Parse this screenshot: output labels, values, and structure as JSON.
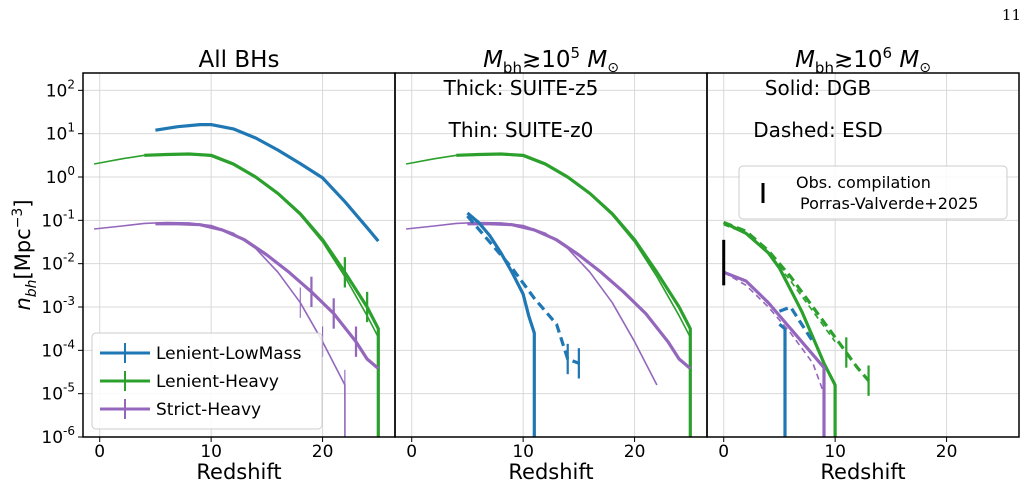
{
  "page_number": "11",
  "colors": {
    "Lenient-LowMass": "#1f77b4",
    "Lenient-Heavy": "#2ca02c",
    "Strict-Heavy": "#9467bd",
    "obs": "#000000"
  },
  "chart_data": [
    {
      "type": "line",
      "title": "All BHs",
      "xlabel": "Redshift",
      "ylabel": "n_bh[Mpc^-3]",
      "xlim": [
        -1.5,
        26.5
      ],
      "ylim_log10": [
        -6,
        2.4
      ],
      "yscale": "log",
      "grid": true,
      "x_ticks": [
        "0",
        "10",
        "20"
      ],
      "y_ticks": [
        "10^2",
        "10^1",
        "10^0",
        "10^-1",
        "10^-2",
        "10^-3",
        "10^-4",
        "10^-5",
        "10^-6"
      ],
      "legend": {
        "placement": "lower-left",
        "entries": [
          "Lenient-LowMass",
          "Lenient-Heavy",
          "Strict-Heavy"
        ]
      },
      "series": [
        {
          "name": "Lenient-LowMass",
          "style": "solid",
          "width": "thick",
          "x": [
            5,
            7,
            9,
            10,
            12,
            14,
            16,
            18,
            20,
            22,
            24,
            25
          ],
          "log10_y": [
            1.08,
            1.16,
            1.21,
            1.21,
            1.11,
            0.9,
            0.62,
            0.31,
            -0.02,
            -0.57,
            -1.17,
            -1.48
          ]
        },
        {
          "name": "Lenient-Heavy",
          "style": "solid",
          "width": "thick",
          "x": [
            4,
            6,
            8,
            10,
            12,
            14,
            16,
            18,
            20,
            22,
            24,
            25
          ],
          "log10_y": [
            0.5,
            0.52,
            0.53,
            0.5,
            0.3,
            0.0,
            -0.38,
            -0.85,
            -1.45,
            -2.2,
            -3.0,
            -3.5
          ],
          "error_x": [
            22,
            24
          ],
          "end_drop": -6
        },
        {
          "name": "Lenient-Heavy",
          "style": "solid",
          "width": "thin",
          "x": [
            -0.5,
            2,
            4,
            6,
            8,
            10,
            12,
            14,
            16,
            18,
            20,
            22,
            24,
            25
          ],
          "log10_y": [
            0.3,
            0.42,
            0.5,
            0.52,
            0.52,
            0.48,
            0.28,
            -0.02,
            -0.4,
            -0.88,
            -1.5,
            -2.3,
            -3.2,
            -3.7
          ],
          "end_drop": -6
        },
        {
          "name": "Strict-Heavy",
          "style": "solid",
          "width": "thick",
          "x": [
            5,
            7,
            9,
            11,
            13,
            15,
            17,
            19,
            21,
            23,
            24,
            25
          ],
          "log10_y": [
            -1.08,
            -1.08,
            -1.1,
            -1.22,
            -1.45,
            -1.8,
            -2.2,
            -2.65,
            -3.15,
            -3.8,
            -4.2,
            -4.42
          ],
          "error_x": [
            19,
            21,
            23
          ]
        },
        {
          "name": "Strict-Heavy",
          "style": "solid",
          "width": "thin",
          "x": [
            -0.5,
            2,
            4,
            6,
            8,
            10,
            12,
            14,
            16,
            18,
            20,
            22
          ],
          "log10_y": [
            -1.2,
            -1.13,
            -1.07,
            -1.05,
            -1.06,
            -1.12,
            -1.3,
            -1.65,
            -2.2,
            -2.9,
            -3.8,
            -4.8
          ],
          "error_x": [
            18,
            20,
            22
          ],
          "end_drop": -6
        }
      ]
    },
    {
      "type": "line",
      "title": "M_bh≳10^5 M_⊙",
      "xlabel": "Redshift",
      "xlim": [
        -1.5,
        26.5
      ],
      "ylim_log10": [
        -6,
        2.4
      ],
      "yscale": "log",
      "grid": true,
      "x_ticks": [
        "0",
        "10",
        "20"
      ],
      "annotations": [
        "Thick: SUITE-z5",
        "Thin: SUITE-z0"
      ],
      "series": [
        {
          "name": "Lenient-Heavy",
          "style": "solid",
          "width": "thick",
          "x": [
            4,
            6,
            8,
            10,
            12,
            14,
            16,
            18,
            20,
            22,
            24,
            25
          ],
          "log10_y": [
            0.5,
            0.52,
            0.53,
            0.5,
            0.3,
            0.0,
            -0.38,
            -0.85,
            -1.45,
            -2.2,
            -3.0,
            -3.5
          ],
          "end_drop": -6
        },
        {
          "name": "Lenient-Heavy",
          "style": "solid",
          "width": "thin",
          "x": [
            -0.5,
            2,
            4,
            6,
            8,
            10,
            12,
            14,
            16,
            18,
            20,
            22,
            24,
            25
          ],
          "log10_y": [
            0.3,
            0.42,
            0.5,
            0.52,
            0.52,
            0.48,
            0.28,
            -0.02,
            -0.4,
            -0.88,
            -1.5,
            -2.3,
            -3.2,
            -3.7
          ],
          "end_drop": -6
        },
        {
          "name": "Strict-Heavy",
          "style": "solid",
          "width": "thick",
          "x": [
            5,
            7,
            9,
            11,
            13,
            15,
            17,
            19,
            21,
            23,
            24,
            25
          ],
          "log10_y": [
            -1.08,
            -1.08,
            -1.1,
            -1.22,
            -1.45,
            -1.8,
            -2.2,
            -2.65,
            -3.15,
            -3.8,
            -4.2,
            -4.42
          ]
        },
        {
          "name": "Strict-Heavy",
          "style": "solid",
          "width": "thin",
          "x": [
            -0.5,
            2,
            4,
            6,
            8,
            10,
            12,
            14,
            16,
            18,
            20,
            22
          ],
          "log10_y": [
            -1.2,
            -1.13,
            -1.07,
            -1.05,
            -1.06,
            -1.12,
            -1.3,
            -1.65,
            -2.2,
            -2.9,
            -3.8,
            -4.8
          ]
        },
        {
          "name": "Lenient-LowMass",
          "style": "solid",
          "width": "thick",
          "x": [
            5,
            6,
            7,
            8,
            9,
            10,
            10.5,
            11
          ],
          "log10_y": [
            -0.83,
            -1.05,
            -1.35,
            -1.75,
            -2.2,
            -2.7,
            -3.2,
            -3.6
          ],
          "end_drop": -6
        },
        {
          "name": "Lenient-LowMass",
          "style": "dashed",
          "width": "thick",
          "x": [
            5,
            7,
            9,
            11,
            13,
            14,
            15
          ],
          "log10_y": [
            -0.9,
            -1.5,
            -2.1,
            -2.8,
            -3.4,
            -4.2,
            -4.3
          ],
          "error_x": [
            14,
            15
          ]
        }
      ]
    },
    {
      "type": "line",
      "title": "M_bh≳10^6 M_⊙",
      "xlabel": "Redshift",
      "xlim": [
        -1.5,
        26.5
      ],
      "ylim_log10": [
        -6,
        2.4
      ],
      "yscale": "log",
      "grid": true,
      "x_ticks": [
        "0",
        "10",
        "20"
      ],
      "annotations": [
        "Solid: DGB",
        "Dashed: ESD"
      ],
      "legend": {
        "placement": "upper-right",
        "entries": [
          "Obs. compilation",
          "Porras-Valverde+2025"
        ]
      },
      "obs_errorbar": {
        "x": 0,
        "log10_low": -2.5,
        "log10_high": -1.45
      },
      "series": [
        {
          "name": "Lenient-Heavy",
          "style": "solid",
          "width": "thick",
          "x": [
            0,
            2,
            4,
            5,
            6,
            7,
            8,
            9,
            10
          ],
          "log10_y": [
            -1.05,
            -1.3,
            -1.75,
            -2.1,
            -2.6,
            -3.1,
            -3.7,
            -4.3,
            -4.8
          ],
          "end_drop": -6
        },
        {
          "name": "Lenient-Heavy",
          "style": "dashed",
          "width": "thick",
          "x": [
            0,
            2,
            4,
            6,
            8,
            10,
            12,
            13
          ],
          "log10_y": [
            -1.05,
            -1.25,
            -1.7,
            -2.3,
            -3.0,
            -3.7,
            -4.4,
            -4.7
          ],
          "error_x": [
            11,
            13
          ]
        },
        {
          "name": "Lenient-Heavy",
          "style": "dashed",
          "width": "thin",
          "x": [
            0,
            2,
            4,
            6,
            8,
            10
          ],
          "log10_y": [
            -1.1,
            -1.3,
            -1.75,
            -2.4,
            -3.1,
            -3.8
          ]
        },
        {
          "name": "Lenient-LowMass",
          "style": "solid",
          "width": "thick",
          "x": [
            5,
            5.5
          ],
          "log10_y": [
            -3.4,
            -3.5
          ],
          "end_drop": -6
        },
        {
          "name": "Lenient-LowMass",
          "style": "dashed",
          "width": "thick",
          "x": [
            5,
            6,
            7,
            8
          ],
          "log10_y": [
            -3.1,
            -3.0,
            -3.4,
            -3.8
          ]
        },
        {
          "name": "Strict-Heavy",
          "style": "solid",
          "width": "thick",
          "x": [
            0,
            2,
            4,
            6,
            8,
            9
          ],
          "log10_y": [
            -2.2,
            -2.4,
            -2.9,
            -3.5,
            -4.1,
            -4.4
          ],
          "end_drop": -6
        },
        {
          "name": "Strict-Heavy",
          "style": "dashed",
          "width": "thin",
          "x": [
            0,
            2,
            4,
            6,
            8,
            9
          ],
          "log10_y": [
            -2.2,
            -2.5,
            -3.0,
            -3.6,
            -4.3,
            -5.0
          ],
          "end_drop": -6
        }
      ]
    }
  ],
  "legend_labels": [
    "Lenient-LowMass",
    "Lenient-Heavy",
    "Strict-Heavy"
  ],
  "obs_legend": [
    "Obs. compilation",
    "Porras-Valverde+2025"
  ]
}
